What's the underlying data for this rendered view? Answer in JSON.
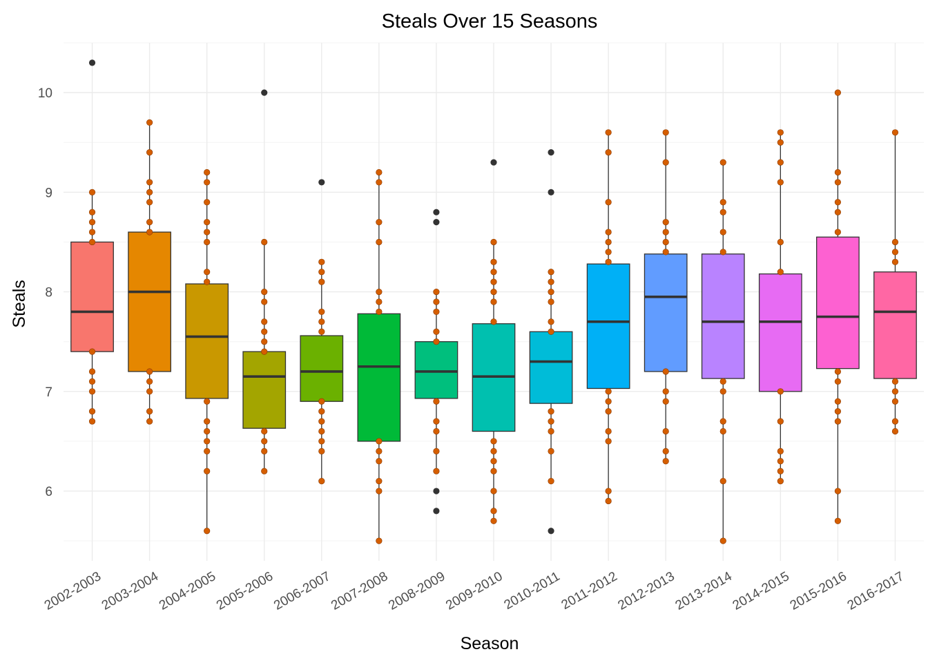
{
  "chart_data": {
    "type": "boxplot",
    "title": "Steals Over 15 Seasons",
    "xlabel": "Season",
    "ylabel": "Steals",
    "ylim": [
      5.3,
      10.5
    ],
    "yticks": [
      6,
      7,
      8,
      9,
      10
    ],
    "grid": true,
    "legend": "none",
    "categories": [
      "2002-2003",
      "2003-2004",
      "2004-2005",
      "2005-2006",
      "2006-2007",
      "2007-2008",
      "2008-2009",
      "2009-2010",
      "2010-2011",
      "2011-2012",
      "2012-2013",
      "2013-2014",
      "2014-2015",
      "2015-2016",
      "2016-2017"
    ],
    "fills": [
      "#F8766D",
      "#E58700",
      "#C99800",
      "#A3A500",
      "#6BB100",
      "#00BA38",
      "#00BF7D",
      "#00C0AF",
      "#00BCD8",
      "#00B0F6",
      "#619CFF",
      "#B983FF",
      "#E76BF3",
      "#FD61D1",
      "#FF67A4"
    ],
    "point_color": "#D55E00",
    "outlier_color": "#333333",
    "boxes": [
      {
        "whisker_low": 6.7,
        "q1": 7.4,
        "median": 7.8,
        "q3": 8.5,
        "whisker_high": 9.0,
        "points": [
          6.7,
          6.8,
          7.0,
          7.1,
          7.2,
          7.4,
          8.5,
          8.6,
          8.7,
          8.8,
          9.0
        ],
        "outliers": [
          10.3
        ]
      },
      {
        "whisker_low": 6.7,
        "q1": 7.2,
        "median": 8.0,
        "q3": 8.6,
        "whisker_high": 9.7,
        "points": [
          6.7,
          6.8,
          7.0,
          7.1,
          7.2,
          8.6,
          8.7,
          8.9,
          9.0,
          9.1,
          9.4,
          9.7
        ],
        "outliers": []
      },
      {
        "whisker_low": 5.6,
        "q1": 6.93,
        "median": 7.55,
        "q3": 8.08,
        "whisker_high": 9.2,
        "points": [
          5.6,
          6.2,
          6.4,
          6.5,
          6.6,
          6.7,
          6.9,
          8.1,
          8.2,
          8.5,
          8.6,
          8.7,
          8.9,
          9.1,
          9.2
        ],
        "outliers": []
      },
      {
        "whisker_low": 6.2,
        "q1": 6.63,
        "median": 7.15,
        "q3": 7.4,
        "whisker_high": 8.5,
        "points": [
          6.2,
          6.4,
          6.5,
          6.6,
          7.4,
          7.5,
          7.6,
          7.7,
          7.9,
          8.0,
          8.5
        ],
        "outliers": [
          10.0
        ]
      },
      {
        "whisker_low": 6.1,
        "q1": 6.9,
        "median": 7.2,
        "q3": 7.56,
        "whisker_high": 8.3,
        "points": [
          6.1,
          6.4,
          6.5,
          6.6,
          6.7,
          6.8,
          6.9,
          7.6,
          7.7,
          7.8,
          8.1,
          8.2,
          8.3
        ],
        "outliers": [
          9.1
        ]
      },
      {
        "whisker_low": 5.5,
        "q1": 6.5,
        "median": 7.25,
        "q3": 7.78,
        "whisker_high": 9.2,
        "points": [
          5.5,
          6.0,
          6.1,
          6.3,
          6.4,
          6.5,
          7.8,
          7.9,
          8.0,
          8.5,
          8.7,
          9.1,
          9.2
        ],
        "outliers": []
      },
      {
        "whisker_low": 6.2,
        "q1": 6.93,
        "median": 7.2,
        "q3": 7.5,
        "whisker_high": 8.0,
        "points": [
          6.2,
          6.4,
          6.6,
          6.7,
          6.9,
          7.5,
          7.6,
          7.8,
          7.9,
          8.0
        ],
        "outliers": [
          5.8,
          6.0,
          8.7,
          8.8
        ]
      },
      {
        "whisker_low": 5.7,
        "q1": 6.6,
        "median": 7.15,
        "q3": 7.68,
        "whisker_high": 8.5,
        "points": [
          5.7,
          5.8,
          6.0,
          6.2,
          6.3,
          6.4,
          6.5,
          7.7,
          7.9,
          8.0,
          8.1,
          8.2,
          8.3,
          8.5
        ],
        "outliers": [
          9.3
        ]
      },
      {
        "whisker_low": 6.1,
        "q1": 6.88,
        "median": 7.3,
        "q3": 7.6,
        "whisker_high": 8.2,
        "points": [
          6.1,
          6.4,
          6.6,
          6.7,
          6.8,
          7.6,
          7.7,
          7.9,
          8.0,
          8.1,
          8.2
        ],
        "outliers": [
          5.6,
          9.0,
          9.4
        ]
      },
      {
        "whisker_low": 5.9,
        "q1": 7.03,
        "median": 7.7,
        "q3": 8.28,
        "whisker_high": 9.6,
        "points": [
          5.9,
          6.0,
          6.5,
          6.6,
          6.8,
          6.9,
          7.0,
          8.3,
          8.4,
          8.5,
          8.6,
          8.9,
          9.4,
          9.6
        ],
        "outliers": []
      },
      {
        "whisker_low": 6.3,
        "q1": 7.2,
        "median": 7.95,
        "q3": 8.38,
        "whisker_high": 9.6,
        "points": [
          6.3,
          6.4,
          6.6,
          6.9,
          7.0,
          7.2,
          8.4,
          8.5,
          8.6,
          8.7,
          9.3,
          9.6
        ],
        "outliers": []
      },
      {
        "whisker_low": 5.5,
        "q1": 7.13,
        "median": 7.7,
        "q3": 8.38,
        "whisker_high": 9.3,
        "points": [
          5.5,
          6.1,
          6.6,
          6.7,
          7.0,
          7.1,
          8.4,
          8.6,
          8.8,
          8.9,
          9.3
        ],
        "outliers": []
      },
      {
        "whisker_low": 6.1,
        "q1": 7.0,
        "median": 7.7,
        "q3": 8.18,
        "whisker_high": 9.6,
        "points": [
          6.1,
          6.2,
          6.3,
          6.4,
          6.7,
          7.0,
          8.2,
          8.5,
          9.1,
          9.3,
          9.5,
          9.6
        ],
        "outliers": []
      },
      {
        "whisker_low": 5.7,
        "q1": 7.23,
        "median": 7.75,
        "q3": 8.55,
        "whisker_high": 10.0,
        "points": [
          5.7,
          6.0,
          6.7,
          6.8,
          6.9,
          7.1,
          7.2,
          8.6,
          8.8,
          8.9,
          9.1,
          9.2,
          10.0
        ],
        "outliers": []
      },
      {
        "whisker_low": 6.6,
        "q1": 7.13,
        "median": 7.8,
        "q3": 8.2,
        "whisker_high": 9.6,
        "points": [
          6.6,
          6.7,
          6.9,
          7.0,
          7.1,
          8.3,
          8.4,
          8.5,
          9.6
        ],
        "outliers": []
      }
    ]
  }
}
